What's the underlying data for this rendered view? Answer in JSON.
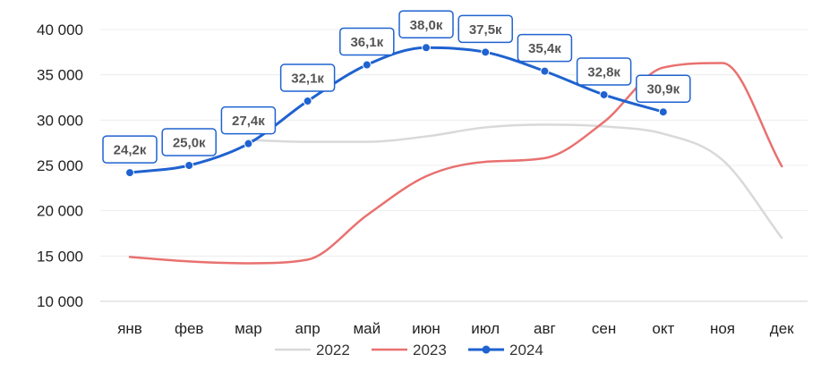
{
  "chart_data": {
    "type": "line",
    "categories": [
      "янв",
      "фев",
      "мар",
      "апр",
      "май",
      "июн",
      "июл",
      "авг",
      "сен",
      "окт",
      "ноя",
      "дек"
    ],
    "ylim": [
      10000,
      40000
    ],
    "y_ticks": [
      "10 000",
      "15 000",
      "20 000",
      "25 000",
      "30 000",
      "35 000",
      "40 000"
    ],
    "grid": true,
    "legend_position": "bottom",
    "series": [
      {
        "name": "2022",
        "color": "#d9d9d9",
        "markers": false,
        "values": [
          null,
          null,
          27800,
          27600,
          27600,
          28200,
          29200,
          29500,
          29300,
          28500,
          25600,
          17000
        ]
      },
      {
        "name": "2023",
        "color": "#e8716f",
        "markers": false,
        "values": [
          14900,
          14400,
          14200,
          14600,
          19500,
          23800,
          25400,
          25800,
          29800,
          35800,
          36300,
          24900
        ]
      },
      {
        "name": "2024",
        "color": "#1f62d0",
        "markers": true,
        "values": [
          24200,
          25000,
          27400,
          32100,
          36100,
          38000,
          37500,
          35400,
          32800,
          30900,
          null,
          null
        ],
        "data_labels": [
          "24,2к",
          "25,0к",
          "27,4к",
          "32,1к",
          "36,1к",
          "38,0к",
          "37,5к",
          "35,4к",
          "32,8к",
          "30,9к"
        ]
      }
    ]
  }
}
